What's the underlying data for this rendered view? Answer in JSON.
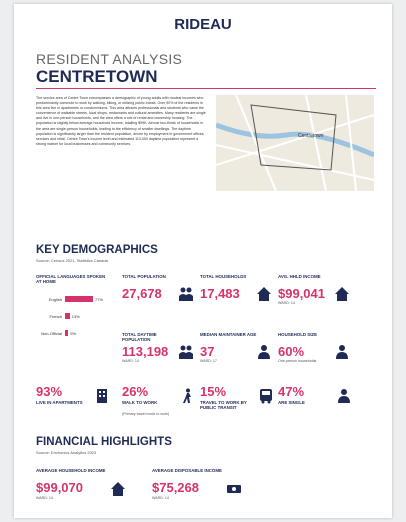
{
  "header": {
    "brand": "RIDEAU",
    "title": "RESIDENT ANALYSIS",
    "subtitle": "CENTRETOWN"
  },
  "intro": "The service area of Centre Town encompasses a demographic of young adults with modest incomes who predominantly commute to work by walking, biking, or utilizing public transit. Over 90% of the residents in this area live in apartments or condominiums. This area attracts professionals and students who value the convenience of walkable streets, local shops, restaurants and cultural amenities. Many residents are single and live in one-person households, and the area offers a mix of rental and ownership housing. The population is slightly below average household income, totalling $99K. Almost two-thirds of households in the area are single-person households, leading to the efficiency of smaller dwellings. The daytime population is significantly larger than the resident population, driven by employment in government offices, services and retail. Centre Town's income level and estimated 113,000 daytime population represent a strong market for local businesses and community services.",
  "map": {
    "label": "Centretown"
  },
  "demographics": {
    "title": "KEY DEMOGRAPHICS",
    "source": "Source: Census 2021, Statistics Canada",
    "languages": {
      "label": "OFFICIAL LANGUAGES SPOKEN AT HOME",
      "categories": [
        "English",
        "French",
        "Non-Official"
      ],
      "values": [
        77,
        13,
        9
      ],
      "value_labels": [
        "77%",
        "13%",
        "9%"
      ]
    },
    "stats": [
      {
        "label": "TOTAL POPULATION",
        "value": "27,678"
      },
      {
        "label": "TOTAL HOUSEHOLDS",
        "value": "17,483"
      },
      {
        "label": "AVG. HHLD INCOME",
        "value": "$99,041",
        "note": "WARD: 14"
      },
      {
        "label": "TOTAL DAYTIME POPULATION",
        "value": "113,198",
        "note": "WARD: 14"
      },
      {
        "label": "MEDIAN MAINTAINER AGE",
        "value": "37",
        "note": "WARD: 17"
      },
      {
        "label": "HOUSEHOLD SIZE",
        "value": "60%",
        "note": "One-person households"
      }
    ],
    "bottom": [
      {
        "value": "93%",
        "label": "LIVE IN APARTMENTS"
      },
      {
        "value": "26%",
        "label": "WALK TO WORK",
        "note": "(Primary travel mode to work)"
      },
      {
        "value": "15%",
        "label": "TRAVEL TO WORK BY PUBLIC TRANSIT"
      },
      {
        "value": "47%",
        "label": "ARE SINGLE"
      }
    ]
  },
  "financial": {
    "title": "FINANCIAL HIGHLIGHTS",
    "source": "Source: Environics Analytics 2023",
    "items": [
      {
        "label": "AVERAGE HOUSEHOLD INCOME",
        "value": "$99,070",
        "note": "WARD: 14"
      },
      {
        "label": "AVERAGE DISPOSABLE INCOME",
        "value": "$75,268",
        "note": "WARD: 14"
      }
    ]
  }
}
